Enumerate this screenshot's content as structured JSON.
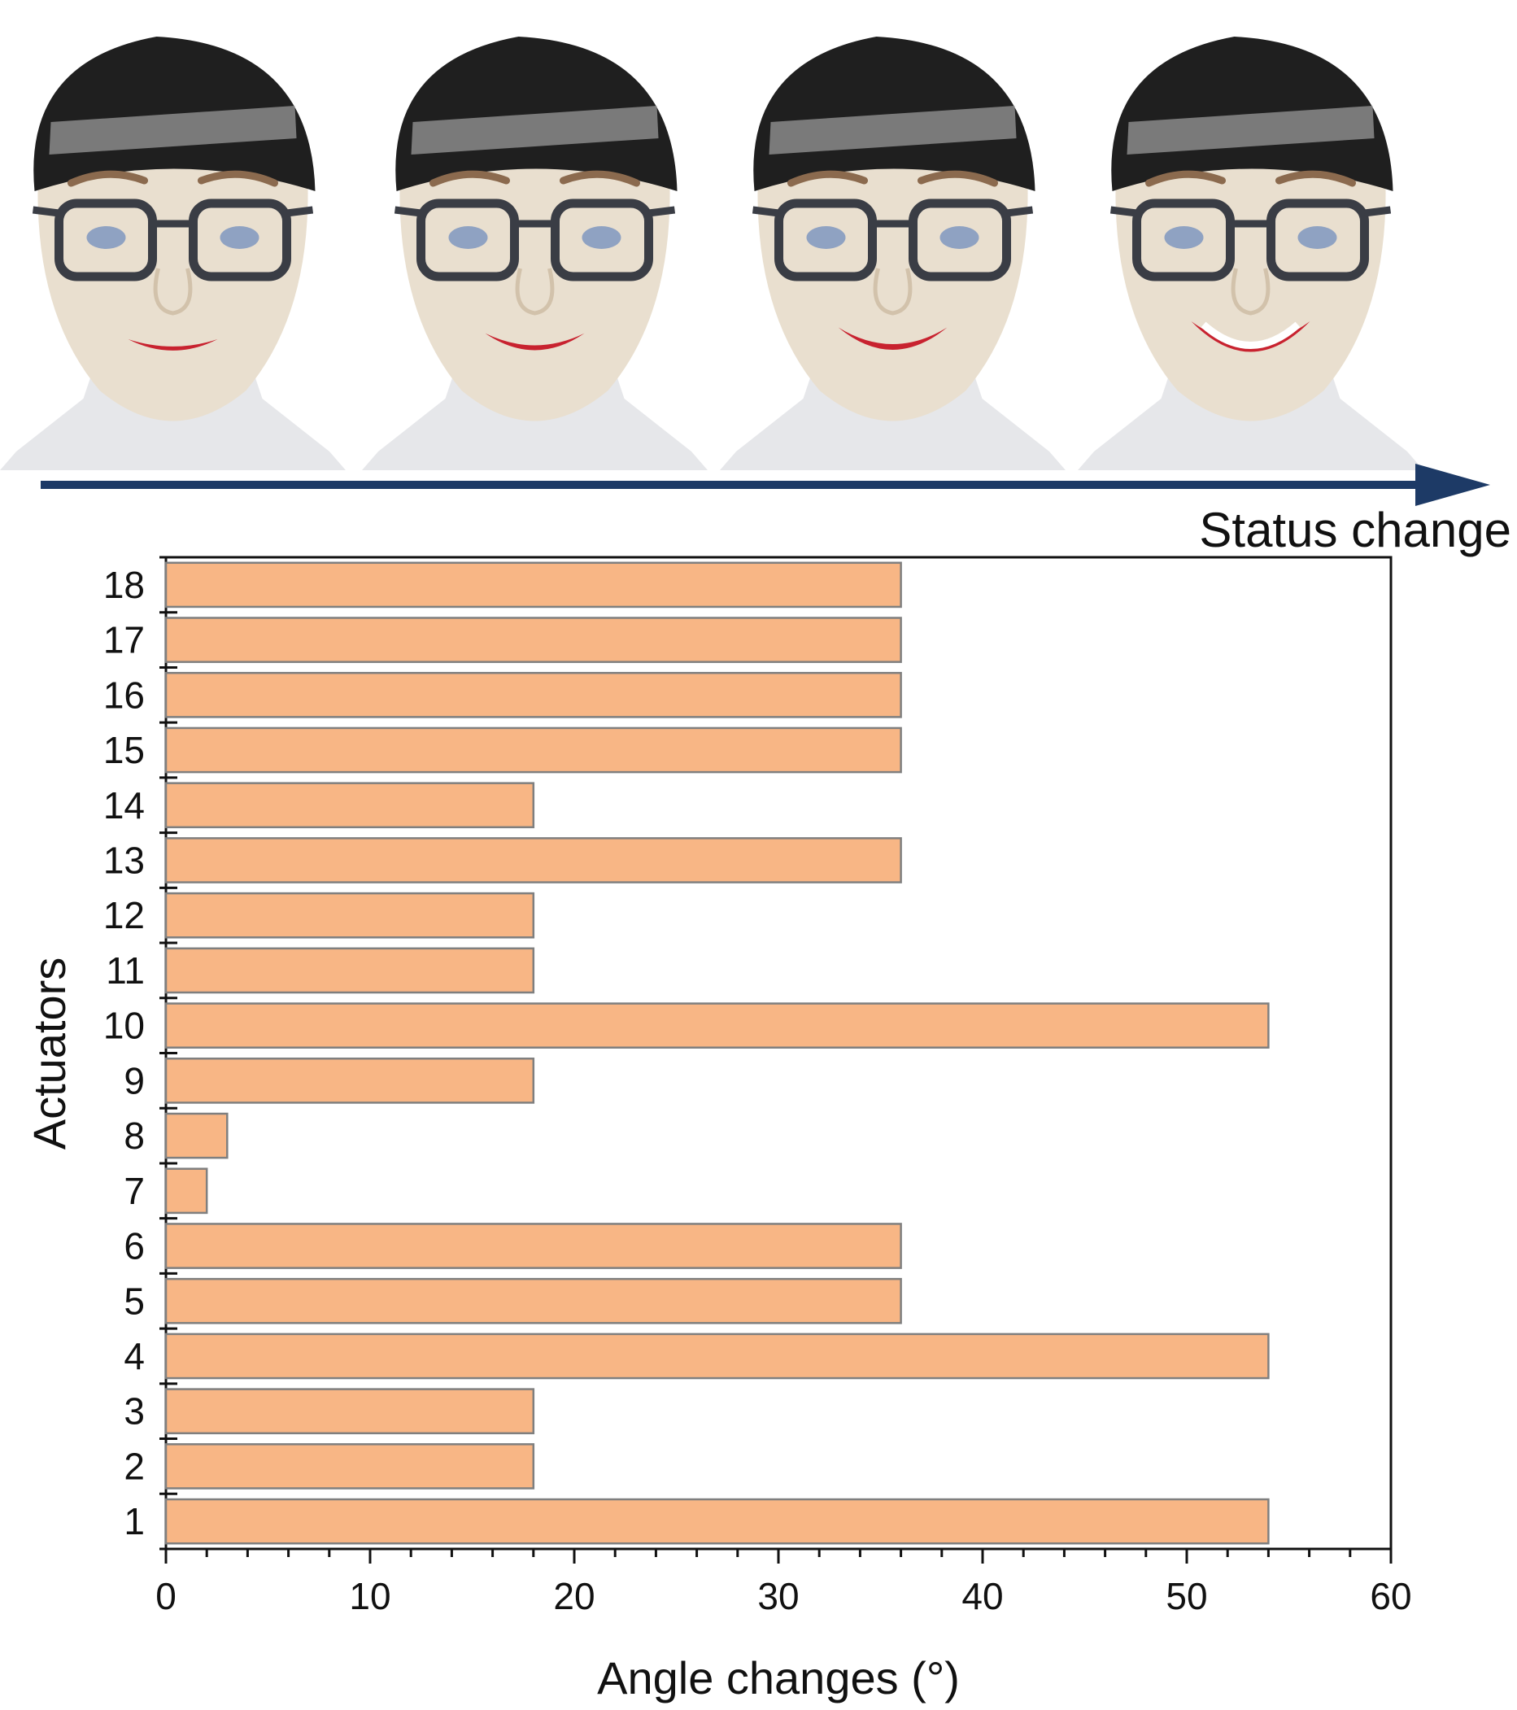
{
  "photos": {
    "count": 4,
    "colors": {
      "skin": "#e9dfcf",
      "hat": "#1f1f1f",
      "hat_pattern": "#9a9a9a",
      "glasses": "#3a3d45",
      "lips": "#c8222f",
      "neck": "#e6e7ea",
      "eyebrow": "#8b6a4e"
    },
    "smile_levels": [
      0,
      0.33,
      0.66,
      1.0
    ]
  },
  "status_arrow": {
    "label": "Status change",
    "color": "#1d3a66"
  },
  "chart_data": {
    "type": "bar",
    "orientation": "horizontal",
    "categories": [
      "1",
      "2",
      "3",
      "4",
      "5",
      "6",
      "7",
      "8",
      "9",
      "10",
      "11",
      "12",
      "13",
      "14",
      "15",
      "16",
      "17",
      "18"
    ],
    "values": [
      54,
      18,
      18,
      54,
      36,
      36,
      2,
      3,
      18,
      54,
      18,
      18,
      36,
      18,
      36,
      36,
      36,
      36
    ],
    "xlabel": "Angle changes (°)",
    "ylabel": "Actuators",
    "xlim": [
      0,
      60
    ],
    "xticks": [
      "0",
      "10",
      "20",
      "30",
      "40",
      "50",
      "60"
    ],
    "grid": false,
    "bar_color": "#f8b685",
    "bar_edge_color": "#7f7f7f"
  }
}
